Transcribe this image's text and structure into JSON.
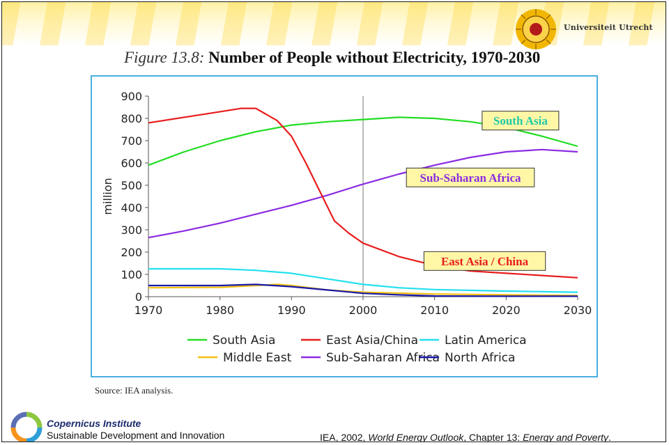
{
  "header": {
    "university_name": "Universiteit Utrecht",
    "figure_label": "Figure 13.8:",
    "figure_title": "Number of People without Electricity, 1970-2030"
  },
  "source_note": "Source: IEA analysis.",
  "footer": {
    "org_name": "Copernicus Institute",
    "org_subtitle": "Sustainable Development and Innovation",
    "citation_prefix": "IEA, 2002, ",
    "citation_work": "World Energy Outlook",
    "citation_middle": ", Chapter 13: ",
    "citation_chapter": "Energy and Poverty",
    "citation_end": "."
  },
  "colors": {
    "south_asia": "#22dd22",
    "east_asia_china": "#e81c1c",
    "latin_america": "#22e0ee",
    "middle_east": "#f2c10f",
    "sub_saharan_africa": "#8a2be2",
    "north_africa": "#1a1aa8",
    "chart_border": "#49aee0",
    "callout_fill": "#fff7a6"
  },
  "chart_data": {
    "type": "line",
    "ylabel": "million",
    "xlim": [
      1970,
      2030
    ],
    "ylim": [
      0,
      900
    ],
    "x_ticks": [
      1970,
      1980,
      1990,
      2000,
      2010,
      2020,
      2030
    ],
    "y_ticks": [
      0,
      100,
      200,
      300,
      400,
      500,
      600,
      700,
      800,
      900
    ],
    "reference_line_x": 2000,
    "legend_position": "bottom",
    "series": [
      {
        "key": "south_asia",
        "name": "South Asia",
        "color": "#22dd22",
        "x": [
          1970,
          1975,
          1980,
          1985,
          1990,
          1995,
          2000,
          2005,
          2010,
          2015,
          2020,
          2025,
          2030
        ],
        "y": [
          590,
          650,
          700,
          740,
          770,
          785,
          795,
          805,
          800,
          785,
          760,
          720,
          675
        ]
      },
      {
        "key": "east_asia_china",
        "name": "East Asia/China",
        "color": "#e81c1c",
        "x": [
          1970,
          1975,
          1980,
          1983,
          1985,
          1988,
          1990,
          1992,
          1994,
          1996,
          1998,
          2000,
          2005,
          2010,
          2015,
          2020,
          2025,
          2030
        ],
        "y": [
          780,
          805,
          830,
          845,
          845,
          790,
          720,
          600,
          470,
          340,
          285,
          240,
          180,
          140,
          115,
          105,
          95,
          85
        ]
      },
      {
        "key": "latin_america",
        "name": "Latin America",
        "color": "#22e0ee",
        "x": [
          1970,
          1980,
          1985,
          1990,
          1995,
          2000,
          2005,
          2010,
          2020,
          2030
        ],
        "y": [
          125,
          125,
          118,
          105,
          80,
          55,
          40,
          32,
          25,
          20
        ]
      },
      {
        "key": "middle_east",
        "name": "Middle East",
        "color": "#f2c10f",
        "x": [
          1970,
          1980,
          1985,
          1988,
          1990,
          1995,
          2000,
          2010,
          2020,
          2030
        ],
        "y": [
          40,
          42,
          50,
          55,
          50,
          30,
          20,
          12,
          8,
          5
        ]
      },
      {
        "key": "sub_saharan_africa",
        "name": "Sub-Saharan Africa",
        "color": "#8a2be2",
        "x": [
          1970,
          1975,
          1980,
          1985,
          1990,
          1995,
          2000,
          2005,
          2010,
          2015,
          2020,
          2025,
          2030
        ],
        "y": [
          265,
          295,
          330,
          370,
          410,
          455,
          505,
          550,
          590,
          625,
          650,
          660,
          650
        ]
      },
      {
        "key": "north_africa",
        "name": "North Africa",
        "color": "#1a1aa8",
        "x": [
          1970,
          1980,
          1985,
          1990,
          1995,
          2000,
          2005,
          2010,
          2020,
          2030
        ],
        "y": [
          50,
          50,
          55,
          45,
          30,
          15,
          8,
          3,
          2,
          2
        ]
      }
    ],
    "annotations": [
      {
        "text": "South Asia",
        "series": "south_asia",
        "x": 2022,
        "y": 790
      },
      {
        "text": "Sub-Saharan Africa",
        "series": "sub_saharan_africa",
        "x": 2015,
        "y": 535
      },
      {
        "text": "East Asia / China",
        "series": "east_asia_china",
        "x": 2017,
        "y": 160
      }
    ],
    "legend": [
      {
        "series": "south_asia",
        "label": "South Asia"
      },
      {
        "series": "east_asia_china",
        "label": "East Asia/China"
      },
      {
        "series": "latin_america",
        "label": "Latin America"
      },
      {
        "series": "middle_east",
        "label": "Middle East"
      },
      {
        "series": "sub_saharan_africa",
        "label": "Sub-Saharan Africa"
      },
      {
        "series": "north_africa",
        "label": "North Africa"
      }
    ]
  }
}
